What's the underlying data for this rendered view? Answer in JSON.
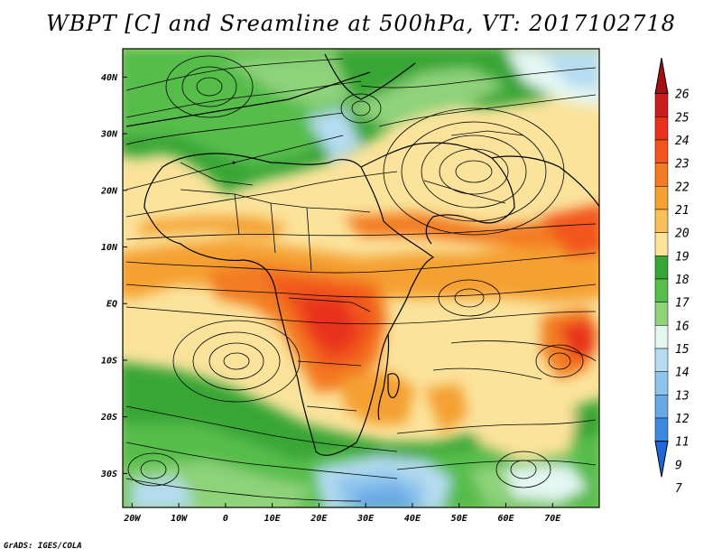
{
  "title": "WBPT [C] and Sreamline at 500hPa, VT: 2017102718",
  "footer": "GrADS: IGES/COLA",
  "axes": {
    "lat_labels": [
      "40N",
      "30N",
      "20N",
      "10N",
      "EQ",
      "10S",
      "20S",
      "30S"
    ],
    "lat_values": [
      40,
      30,
      20,
      10,
      0,
      -10,
      -20,
      -30
    ],
    "lon_labels": [
      "20W",
      "10W",
      "0",
      "10E",
      "20E",
      "30E",
      "40E",
      "50E",
      "60E",
      "70E"
    ],
    "lon_values": [
      -20,
      -10,
      0,
      10,
      20,
      30,
      40,
      50,
      60,
      70
    ],
    "lon_range": [
      -22,
      80
    ],
    "lat_range": [
      -36,
      45
    ]
  },
  "colorbar": {
    "labels": [
      "26",
      "25",
      "24",
      "23",
      "22",
      "21",
      "20",
      "19",
      "18",
      "17",
      "16",
      "15",
      "14",
      "13",
      "12",
      "11",
      "9",
      "7"
    ],
    "colors": [
      "#a50f15",
      "#c81e1e",
      "#e8321c",
      "#f2561e",
      "#f37c22",
      "#f5a033",
      "#f8c158",
      "#fbe39c",
      "#37a636",
      "#57bd4c",
      "#8ed27a",
      "#e4f7f3",
      "#b5dcf0",
      "#8ec5ec",
      "#6aa9e6",
      "#3d89df",
      "#1f67d6"
    ]
  },
  "map": {
    "variable": "WBPT",
    "level": "500hPa",
    "valid_time": "2017102718"
  }
}
